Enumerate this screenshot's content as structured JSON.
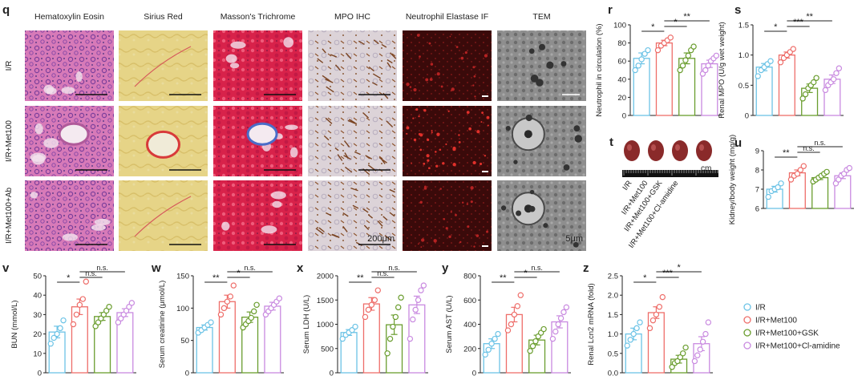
{
  "panel_letters": [
    "q",
    "r",
    "s",
    "t",
    "u",
    "v",
    "w",
    "x",
    "y",
    "z"
  ],
  "colors": {
    "I/R": "#6cc3e6",
    "I/R+Met100": "#ee6e6a",
    "I/R+Met100+GSK": "#6a9d2e",
    "I/R+Met100+Cl-amidine": "#c98ae0"
  },
  "micrographs": {
    "columns": [
      "Hematoxylin Eosin",
      "Sirius Red",
      "Masson's Trichrome",
      "MPO IHC",
      "Neutrophil Elastase IF",
      "TEM"
    ],
    "rows": [
      "I/R",
      "I/R+Met100",
      "I/R+Met100+Ab"
    ],
    "scale_labels": {
      "light": "200μm",
      "tem": "5μm"
    }
  },
  "kidney_photo": {
    "ruler_unit": "cm",
    "labels": [
      "I/R",
      "I/R+Met100",
      "I/R+Met100+GSK",
      "I/R+Met100+Cl-amidine"
    ]
  },
  "legend": {
    "entries": [
      "I/R",
      "I/R+Met100",
      "I/R+Met100+GSK",
      "I/R+Met100+Cl-amidine"
    ]
  },
  "chart_data": [
    {
      "panel": "r",
      "type": "bar",
      "ylabel": "Neutrophil in circulation (%)",
      "ylim": [
        0,
        100
      ],
      "yticks": [
        0,
        20,
        40,
        60,
        80,
        100
      ],
      "means": [
        63,
        80,
        63,
        57
      ],
      "sem": [
        6,
        3,
        6,
        4
      ],
      "points": [
        [
          50,
          55,
          62,
          68,
          72
        ],
        [
          72,
          77,
          80,
          83,
          86
        ],
        [
          50,
          55,
          61,
          66,
          72,
          76
        ],
        [
          46,
          50,
          55,
          60,
          63,
          66
        ]
      ],
      "sig": [
        {
          "a": 0,
          "b": 1,
          "t": "*"
        },
        {
          "a": 1,
          "b": 2,
          "t": "*"
        },
        {
          "a": 1,
          "b": 3,
          "t": "**"
        }
      ]
    },
    {
      "panel": "s",
      "type": "bar",
      "ylabel": "Renal MPO (U/g wet weight)",
      "ylim": [
        0,
        1.5
      ],
      "yticks": [
        0,
        0.5,
        1.0,
        1.5
      ],
      "ytick_labels": [
        "0",
        "0.5",
        "1.0",
        "1.5"
      ],
      "means": [
        0.8,
        1.0,
        0.45,
        0.6
      ],
      "sem": [
        0.06,
        0.05,
        0.07,
        0.07
      ],
      "points": [
        [
          0.65,
          0.75,
          0.8,
          0.85,
          0.9
        ],
        [
          0.88,
          0.95,
          1.0,
          1.05,
          1.1
        ],
        [
          0.28,
          0.35,
          0.45,
          0.5,
          0.55,
          0.62
        ],
        [
          0.42,
          0.5,
          0.55,
          0.6,
          0.7,
          0.78
        ]
      ],
      "sig": [
        {
          "a": 0,
          "b": 1,
          "t": "*"
        },
        {
          "a": 1,
          "b": 2,
          "t": "***"
        },
        {
          "a": 1,
          "b": 3,
          "t": "**"
        }
      ]
    },
    {
      "panel": "u",
      "type": "bar",
      "ylabel": "Kidney/body weight (mg/g)",
      "ylim": [
        6,
        9
      ],
      "yticks": [
        6,
        7,
        8,
        9
      ],
      "means": [
        7.0,
        7.85,
        7.6,
        7.7
      ],
      "sem": [
        0.15,
        0.15,
        0.1,
        0.15
      ],
      "points": [
        [
          6.6,
          6.9,
          7.0,
          7.1,
          7.3
        ],
        [
          7.5,
          7.7,
          7.8,
          8.0,
          8.2
        ],
        [
          7.4,
          7.5,
          7.6,
          7.7,
          7.8,
          7.9
        ],
        [
          7.3,
          7.5,
          7.7,
          7.8,
          8.0,
          8.1
        ]
      ],
      "sig": [
        {
          "a": 0,
          "b": 1,
          "t": "**"
        },
        {
          "a": 1,
          "b": 2,
          "t": "n.s."
        },
        {
          "a": 1,
          "b": 3,
          "t": "n.s."
        }
      ]
    },
    {
      "panel": "v",
      "type": "bar",
      "ylabel": "BUN (mmol/L)",
      "ylim": [
        0,
        50
      ],
      "yticks": [
        0,
        10,
        20,
        30,
        40,
        50
      ],
      "means": [
        21,
        34,
        29,
        31
      ],
      "sem": [
        3,
        4,
        2,
        2
      ],
      "points": [
        [
          15,
          18,
          20,
          23,
          27
        ],
        [
          25,
          30,
          35,
          38,
          47
        ],
        [
          24,
          26,
          28,
          30,
          32,
          34
        ],
        [
          26,
          28,
          30,
          32,
          34,
          36
        ]
      ],
      "sig": [
        {
          "a": 0,
          "b": 1,
          "t": "*"
        },
        {
          "a": 1,
          "b": 2,
          "t": "n.s."
        },
        {
          "a": 1,
          "b": 3,
          "t": "n.s."
        }
      ]
    },
    {
      "panel": "w",
      "type": "bar",
      "ylabel": "Serum creatinine (μmol/L)",
      "ylim": [
        0,
        150
      ],
      "yticks": [
        0,
        50,
        100,
        150
      ],
      "means": [
        70,
        110,
        86,
        103
      ],
      "sem": [
        4,
        10,
        8,
        6
      ],
      "points": [
        [
          62,
          66,
          70,
          74,
          78
        ],
        [
          90,
          100,
          110,
          118,
          135
        ],
        [
          70,
          75,
          80,
          85,
          95,
          105
        ],
        [
          90,
          95,
          100,
          105,
          110,
          115
        ]
      ],
      "sig": [
        {
          "a": 0,
          "b": 1,
          "t": "**"
        },
        {
          "a": 1,
          "b": 2,
          "t": "*"
        },
        {
          "a": 1,
          "b": 3,
          "t": "n.s."
        }
      ]
    },
    {
      "panel": "x",
      "type": "bar",
      "ylabel": "Serum LDH (U/L)",
      "ylim": [
        0,
        2000
      ],
      "yticks": [
        0,
        500,
        1000,
        1500,
        2000
      ],
      "means": [
        830,
        1420,
        990,
        1400
      ],
      "sem": [
        60,
        130,
        200,
        180
      ],
      "points": [
        [
          700,
          780,
          830,
          880,
          950
        ],
        [
          1150,
          1300,
          1400,
          1500,
          1700
        ],
        [
          400,
          700,
          950,
          1150,
          1350,
          1550
        ],
        [
          700,
          1100,
          1300,
          1500,
          1700,
          1800
        ]
      ],
      "sig": [
        {
          "a": 0,
          "b": 1,
          "t": "**"
        },
        {
          "a": 1,
          "b": 2,
          "t": "n.s."
        },
        {
          "a": 1,
          "b": 3,
          "t": "n.s."
        }
      ]
    },
    {
      "panel": "y",
      "type": "bar",
      "ylabel": "Serum AST (U/L)",
      "ylim": [
        0,
        800
      ],
      "yticks": [
        0,
        200,
        400,
        600,
        800
      ],
      "means": [
        240,
        480,
        270,
        420
      ],
      "sem": [
        40,
        60,
        40,
        50
      ],
      "points": [
        [
          150,
          190,
          240,
          280,
          320
        ],
        [
          350,
          400,
          480,
          550,
          640
        ],
        [
          180,
          220,
          260,
          300,
          330,
          360
        ],
        [
          280,
          340,
          400,
          450,
          500,
          540
        ]
      ],
      "sig": [
        {
          "a": 0,
          "b": 1,
          "t": "**"
        },
        {
          "a": 1,
          "b": 2,
          "t": "*"
        },
        {
          "a": 1,
          "b": 3,
          "t": "n.s."
        }
      ]
    },
    {
      "panel": "z",
      "type": "bar",
      "ylabel": "Renal Lcn2 mRNA (fold)",
      "ylim": [
        0,
        2.5
      ],
      "yticks": [
        0,
        0.5,
        1.0,
        1.5,
        2.0,
        2.5
      ],
      "ytick_labels": [
        "0.0",
        "0.5",
        "1.0",
        "1.5",
        "2.0",
        "2.5"
      ],
      "means": [
        1.0,
        1.55,
        0.35,
        0.75
      ],
      "sem": [
        0.15,
        0.15,
        0.1,
        0.18
      ],
      "points": [
        [
          0.7,
          0.85,
          1.0,
          1.15,
          1.3
        ],
        [
          1.15,
          1.35,
          1.5,
          1.7,
          1.95
        ],
        [
          0.15,
          0.25,
          0.3,
          0.4,
          0.5,
          0.65
        ],
        [
          0.3,
          0.45,
          0.6,
          0.8,
          1.0,
          1.3
        ]
      ],
      "sig": [
        {
          "a": 0,
          "b": 1,
          "t": "*"
        },
        {
          "a": 1,
          "b": 2,
          "t": "***"
        },
        {
          "a": 1,
          "b": 3,
          "t": "*"
        }
      ]
    }
  ]
}
